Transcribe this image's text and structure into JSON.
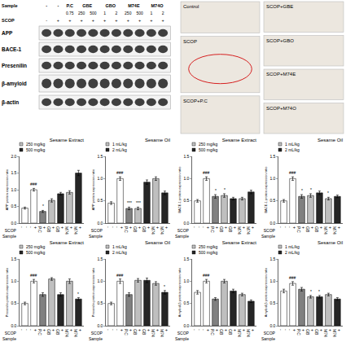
{
  "western_blot": {
    "row_labels": [
      "Sample",
      "SCOP"
    ],
    "groups": [
      {
        "label": "-"
      },
      {
        "label": "-"
      },
      {
        "label": "P.C",
        "doses": [
          "0.75"
        ]
      },
      {
        "label": "GBE",
        "doses": [
          "250",
          "500"
        ]
      },
      {
        "label": "GBO",
        "doses": [
          "1",
          "2"
        ]
      },
      {
        "label": "M74E",
        "doses": [
          "250",
          "500"
        ]
      },
      {
        "label": "M74O",
        "doses": [
          "1",
          "2"
        ]
      }
    ],
    "scop": [
      "-",
      "+",
      "+",
      "+",
      "+",
      "+",
      "+",
      "+",
      "+",
      "+",
      "+"
    ],
    "bands": [
      "APP",
      "BACE-1",
      "Presenilin",
      "β-amyloid",
      "β-actin"
    ]
  },
  "ihc": {
    "left": [
      "Control",
      "SCOP",
      "SCOP+P.C"
    ],
    "right": [
      "SCOP+GBE",
      "SCOP+GBO",
      "SCOP+M74E",
      "SCOP+M74O"
    ]
  },
  "chart_data": [
    {
      "type": "bar",
      "title": "Sesame Extract",
      "y_label": "APP protein expression ratio",
      "categories": [
        "-",
        "+",
        "+",
        "+",
        "+",
        "+",
        "+"
      ],
      "sample_row": [
        "-",
        "-",
        "P.C",
        "GB",
        "GB",
        "M74",
        "M74"
      ],
      "row_labels": [
        "SCOP",
        "Sample"
      ],
      "values": [
        0.45,
        1.0,
        0.35,
        0.68,
        0.88,
        0.92,
        1.5
      ],
      "errors": [
        0.03,
        0.04,
        0.03,
        0.05,
        0.04,
        0.05,
        0.08
      ],
      "colors": [
        "#ffffff",
        "#ffffff",
        "#808080",
        "#bfbfbf",
        "#262626",
        "#bfbfbf",
        "#262626"
      ],
      "series": [
        {
          "name": "250 mg/kg",
          "color": "#bfbfbf"
        },
        {
          "name": "500 mg/kg",
          "color": "#262626"
        }
      ],
      "annotations": [
        {
          "index": 1,
          "text": "###"
        },
        {
          "index": 2,
          "text": "*"
        }
      ],
      "ylim": [
        0,
        2
      ],
      "yticks": [
        {
          "value": 0,
          "label": "0.0"
        },
        {
          "value": 0.5,
          "label": "0.5"
        },
        {
          "value": 1,
          "label": "1.0"
        },
        {
          "value": 1.5,
          "label": "1.5"
        },
        {
          "value": 2,
          "label": "2.0"
        }
      ],
      "grid": false,
      "legend": "upper left"
    },
    {
      "type": "bar",
      "title": "Sesame Oil",
      "y_label": "APP protein expression ratio",
      "categories": [
        "-",
        "+",
        "+",
        "+",
        "+",
        "+",
        "+"
      ],
      "sample_row": [
        "-",
        "-",
        "P.C",
        "GB",
        "GB",
        "M74",
        "M74"
      ],
      "row_labels": [
        "SCOP",
        "Sample"
      ],
      "values": [
        0.45,
        1.0,
        0.33,
        0.33,
        0.92,
        1.0,
        0.68
      ],
      "errors": [
        0.03,
        0.04,
        0.03,
        0.03,
        0.05,
        0.04,
        0.04
      ],
      "colors": [
        "#ffffff",
        "#ffffff",
        "#808080",
        "#bfbfbf",
        "#262626",
        "#bfbfbf",
        "#262626"
      ],
      "series": [
        {
          "name": "1 mL/kg",
          "color": "#bfbfbf"
        },
        {
          "name": "2 mL/kg",
          "color": "#262626"
        }
      ],
      "annotations": [
        {
          "index": 1,
          "text": "###"
        },
        {
          "index": 2,
          "text": "***"
        },
        {
          "index": 3,
          "text": "***"
        }
      ],
      "ylim": [
        0,
        1.5
      ],
      "yticks": [
        {
          "value": 0,
          "label": "0.0"
        },
        {
          "value": 0.5,
          "label": "0.5"
        },
        {
          "value": 1,
          "label": "1.0"
        },
        {
          "value": 1.5,
          "label": "1.5"
        }
      ],
      "grid": false,
      "legend": "upper left"
    },
    {
      "type": "bar",
      "title": "Sesame Extract",
      "y_label": "BACE-1 protein expression ratio",
      "categories": [
        "-",
        "+",
        "+",
        "+",
        "+",
        "+",
        "+"
      ],
      "sample_row": [
        "-",
        "-",
        "P.C",
        "GB",
        "GB",
        "M74",
        "M74"
      ],
      "row_labels": [
        "SCOP",
        "Sample"
      ],
      "values": [
        0.5,
        1.0,
        0.6,
        0.62,
        0.55,
        0.55,
        0.7
      ],
      "errors": [
        0.03,
        0.04,
        0.04,
        0.04,
        0.03,
        0.03,
        0.04
      ],
      "colors": [
        "#ffffff",
        "#ffffff",
        "#808080",
        "#bfbfbf",
        "#262626",
        "#bfbfbf",
        "#262626"
      ],
      "series": [
        {
          "name": "250 mg/kg",
          "color": "#bfbfbf"
        },
        {
          "name": "500 mg/kg",
          "color": "#262626"
        }
      ],
      "annotations": [
        {
          "index": 1,
          "text": "###"
        },
        {
          "index": 2,
          "text": "*"
        },
        {
          "index": 3,
          "text": "*"
        }
      ],
      "ylim": [
        0,
        1.5
      ],
      "yticks": [
        {
          "value": 0,
          "label": "0.0"
        },
        {
          "value": 0.5,
          "label": "0.5"
        },
        {
          "value": 1,
          "label": "1.0"
        },
        {
          "value": 1.5,
          "label": "1.5"
        }
      ],
      "grid": false,
      "legend": "upper left"
    },
    {
      "type": "bar",
      "title": "Sesame Oil",
      "y_label": "BACE-1 protein expression ratio",
      "categories": [
        "-",
        "+",
        "+",
        "+",
        "+",
        "+",
        "+"
      ],
      "sample_row": [
        "-",
        "-",
        "P.C",
        "GB",
        "GB",
        "M74",
        "M74"
      ],
      "row_labels": [
        "SCOP",
        "Sample"
      ],
      "values": [
        0.5,
        1.0,
        0.6,
        0.62,
        0.68,
        0.55,
        0.6
      ],
      "errors": [
        0.03,
        0.04,
        0.04,
        0.04,
        0.04,
        0.03,
        0.03
      ],
      "colors": [
        "#ffffff",
        "#ffffff",
        "#808080",
        "#bfbfbf",
        "#262626",
        "#bfbfbf",
        "#262626"
      ],
      "series": [
        {
          "name": "1 mL/kg",
          "color": "#bfbfbf"
        },
        {
          "name": "2 mL/kg",
          "color": "#262626"
        }
      ],
      "annotations": [
        {
          "index": 1,
          "text": "###"
        },
        {
          "index": 2,
          "text": "*"
        },
        {
          "index": 3,
          "text": "*"
        },
        {
          "index": 5,
          "text": "*"
        }
      ],
      "ylim": [
        0,
        1.5
      ],
      "yticks": [
        {
          "value": 0,
          "label": "0.0"
        },
        {
          "value": 0.5,
          "label": "0.5"
        },
        {
          "value": 1,
          "label": "1.0"
        },
        {
          "value": 1.5,
          "label": "1.5"
        }
      ],
      "grid": false,
      "legend": "upper left"
    },
    {
      "type": "bar",
      "title": "Sesame Extract",
      "y_label": "Presenilin protein expression ratio",
      "categories": [
        "-",
        "+",
        "+",
        "+",
        "+",
        "+",
        "+"
      ],
      "sample_row": [
        "-",
        "-",
        "P.C",
        "GB",
        "GB",
        "M74",
        "M74"
      ],
      "row_labels": [
        "SCOP",
        "Sample"
      ],
      "values": [
        0.5,
        1.0,
        0.7,
        1.05,
        0.7,
        1.0,
        0.6
      ],
      "errors": [
        0.03,
        0.04,
        0.04,
        0.03,
        0.04,
        0.05,
        0.03
      ],
      "colors": [
        "#ffffff",
        "#ffffff",
        "#808080",
        "#bfbfbf",
        "#262626",
        "#bfbfbf",
        "#262626"
      ],
      "series": [
        {
          "name": "250 mg/kg",
          "color": "#bfbfbf"
        },
        {
          "name": "500 mg/kg",
          "color": "#262626"
        }
      ],
      "annotations": [
        {
          "index": 1,
          "text": "###"
        },
        {
          "index": 6,
          "text": "*"
        }
      ],
      "ylim": [
        0,
        1.5
      ],
      "yticks": [
        {
          "value": 0,
          "label": "0.0"
        },
        {
          "value": 0.5,
          "label": "0.5"
        },
        {
          "value": 1,
          "label": "1.0"
        },
        {
          "value": 1.5,
          "label": "1.5"
        }
      ],
      "grid": false,
      "legend": "upper left"
    },
    {
      "type": "bar",
      "title": "Sesame Oil",
      "y_label": "Presenilin protein expression ratio",
      "categories": [
        "-",
        "+",
        "+",
        "+",
        "+",
        "+",
        "+"
      ],
      "sample_row": [
        "-",
        "-",
        "P.C",
        "GB",
        "GB",
        "M74",
        "M74"
      ],
      "row_labels": [
        "SCOP",
        "Sample"
      ],
      "values": [
        0.5,
        1.0,
        0.7,
        1.02,
        1.02,
        0.95,
        0.75
      ],
      "errors": [
        0.03,
        0.05,
        0.04,
        0.04,
        0.05,
        0.04,
        0.04
      ],
      "colors": [
        "#ffffff",
        "#ffffff",
        "#808080",
        "#bfbfbf",
        "#262626",
        "#bfbfbf",
        "#262626"
      ],
      "series": [
        {
          "name": "1 mL/kg",
          "color": "#bfbfbf"
        },
        {
          "name": "2 mL/kg",
          "color": "#262626"
        }
      ],
      "annotations": [
        {
          "index": 1,
          "text": "###"
        },
        {
          "index": 6,
          "text": "*"
        }
      ],
      "ylim": [
        0,
        1.5
      ],
      "yticks": [
        {
          "value": 0,
          "label": "0.0"
        },
        {
          "value": 0.5,
          "label": "0.5"
        },
        {
          "value": 1,
          "label": "1.0"
        },
        {
          "value": 1.5,
          "label": "1.5"
        }
      ],
      "grid": false,
      "legend": "upper left"
    },
    {
      "type": "bar",
      "title": "Sesame Extract",
      "y_label": "Amyloid-β protein expression ratio",
      "categories": [
        "-",
        "+",
        "+",
        "+",
        "+",
        "+",
        "+"
      ],
      "sample_row": [
        "-",
        "-",
        "P.C",
        "GB",
        "GB",
        "M74",
        "M74"
      ],
      "row_labels": [
        "SCOP",
        "Sample"
      ],
      "values": [
        0.75,
        1.0,
        0.6,
        1.0,
        0.78,
        0.7,
        0.55
      ],
      "errors": [
        0.04,
        0.04,
        0.03,
        0.04,
        0.04,
        0.03,
        0.03
      ],
      "colors": [
        "#ffffff",
        "#ffffff",
        "#808080",
        "#bfbfbf",
        "#262626",
        "#bfbfbf",
        "#262626"
      ],
      "series": [
        {
          "name": "250 mg/kg",
          "color": "#bfbfbf"
        },
        {
          "name": "500 mg/kg",
          "color": "#262626"
        }
      ],
      "annotations": [
        {
          "index": 1,
          "text": "###"
        }
      ],
      "ylim": [
        0,
        1.5
      ],
      "yticks": [
        {
          "value": 0,
          "label": "0.0"
        },
        {
          "value": 0.5,
          "label": "0.5"
        },
        {
          "value": 1,
          "label": "1.0"
        },
        {
          "value": 1.5,
          "label": "1.5"
        }
      ],
      "grid": false,
      "legend": "upper left"
    },
    {
      "type": "bar",
      "title": "Sesame Oil",
      "y_label": "Amyloid-β protein expression ratio",
      "categories": [
        "-",
        "+",
        "+",
        "+",
        "+",
        "+",
        "+"
      ],
      "sample_row": [
        "-",
        "-",
        "P.C",
        "GB",
        "GB",
        "M74",
        "M74"
      ],
      "row_labels": [
        "SCOP",
        "Sample"
      ],
      "values": [
        0.78,
        0.95,
        0.82,
        0.65,
        0.65,
        0.7,
        0.6
      ],
      "errors": [
        0.04,
        0.04,
        0.04,
        0.03,
        0.03,
        0.03,
        0.03
      ],
      "colors": [
        "#ffffff",
        "#ffffff",
        "#808080",
        "#bfbfbf",
        "#262626",
        "#bfbfbf",
        "#262626"
      ],
      "series": [
        {
          "name": "1 mL/kg",
          "color": "#bfbfbf"
        },
        {
          "name": "2 mL/kg",
          "color": "#262626"
        }
      ],
      "annotations": [
        {
          "index": 1,
          "text": "###"
        },
        {
          "index": 3,
          "text": "*"
        },
        {
          "index": 4,
          "text": "*"
        }
      ],
      "ylim": [
        0,
        1.5
      ],
      "yticks": [
        {
          "value": 0,
          "label": "0.0"
        },
        {
          "value": 0.5,
          "label": "0.5"
        },
        {
          "value": 1,
          "label": "1.0"
        },
        {
          "value": 1.5,
          "label": "1.5"
        }
      ],
      "grid": false,
      "legend": "upper left"
    }
  ]
}
